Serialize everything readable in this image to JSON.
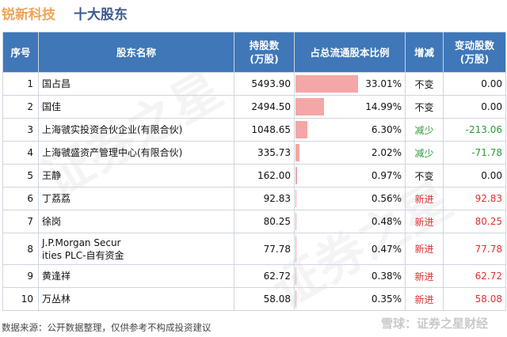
{
  "title": {
    "company": "锐新科技",
    "subtitle": "十大股东"
  },
  "headers": {
    "idx": "序号",
    "name": "股东名称",
    "holding_l1": "持股数",
    "holding_l2": "(万股)",
    "ratio": "占总流通股本比例",
    "change_type": "增减",
    "change_l1": "变动股数",
    "change_l2": "(万股)"
  },
  "rows": [
    {
      "idx": "1",
      "name": "国占昌",
      "name2": "",
      "holding": "5493.90",
      "ratio": "33.01%",
      "ratio_value": 33.01,
      "change_type": "不变",
      "change": "0.00",
      "kind": "same"
    },
    {
      "idx": "2",
      "name": "国佳",
      "name2": "",
      "holding": "2494.50",
      "ratio": "14.99%",
      "ratio_value": 14.99,
      "change_type": "不变",
      "change": "0.00",
      "kind": "same"
    },
    {
      "idx": "3",
      "name": "上海虢实投资合伙企业(有限合伙)",
      "name2": "",
      "holding": "1048.65",
      "ratio": "6.30%",
      "ratio_value": 6.3,
      "change_type": "减少",
      "change": "-213.06",
      "kind": "down"
    },
    {
      "idx": "4",
      "name": "上海虢盛资产管理中心(有限合伙)",
      "name2": "",
      "holding": "335.73",
      "ratio": "2.02%",
      "ratio_value": 2.02,
      "change_type": "减少",
      "change": "-71.78",
      "kind": "down"
    },
    {
      "idx": "5",
      "name": "王静",
      "name2": "",
      "holding": "162.00",
      "ratio": "0.97%",
      "ratio_value": 0.97,
      "change_type": "不变",
      "change": "0.00",
      "kind": "same"
    },
    {
      "idx": "6",
      "name": "丁荔荔",
      "name2": "",
      "holding": "92.83",
      "ratio": "0.56%",
      "ratio_value": 0.56,
      "change_type": "新进",
      "change": "92.83",
      "kind": "new"
    },
    {
      "idx": "7",
      "name": "徐岗",
      "name2": "",
      "holding": "80.25",
      "ratio": "0.48%",
      "ratio_value": 0.48,
      "change_type": "新进",
      "change": "80.25",
      "kind": "new"
    },
    {
      "idx": "8",
      "name": "J.P.Morgan Secur",
      "name2": "ities PLC-自有资金",
      "holding": "77.78",
      "ratio": "0.47%",
      "ratio_value": 0.47,
      "change_type": "新进",
      "change": "77.78",
      "kind": "new"
    },
    {
      "idx": "9",
      "name": "黄逢祥",
      "name2": "",
      "holding": "62.72",
      "ratio": "0.38%",
      "ratio_value": 0.38,
      "change_type": "新进",
      "change": "62.72",
      "kind": "new"
    },
    {
      "idx": "10",
      "name": "万丛林",
      "name2": "",
      "holding": "58.08",
      "ratio": "0.35%",
      "ratio_value": 0.35,
      "change_type": "新进",
      "change": "58.08",
      "kind": "new"
    }
  ],
  "footer": {
    "source": "数据来源：公开数据整理，仅供参考不构成投资建议"
  },
  "brand": {
    "text": "雪球：证券之星财经"
  },
  "colors": {
    "header_bg": "#3f77b8",
    "bar": "#f5a6a6",
    "down": "#2a9a3a",
    "new": "#e03030",
    "title_company": "#f0a35a",
    "title_sub": "#3d5a8f"
  }
}
